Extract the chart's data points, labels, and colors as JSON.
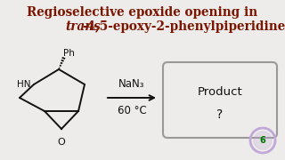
{
  "title_line1": "Regioselective epoxide opening in",
  "title_line2_italic": "trans",
  "title_line2_rest": "-4,5-epoxy-2-phenylpiperidine",
  "title_color": "#7B1500",
  "bg_color": "#EDECEA",
  "reagent_above": "NaN₃",
  "reagent_below": "60 °C",
  "product_text1": "Product",
  "product_text2": "?",
  "struct_color": "#111111",
  "arrow_color": "#111111",
  "box_edge_color": "#999999",
  "watermark_ring_color": "#C0A8D8",
  "watermark_text_color": "#007700"
}
